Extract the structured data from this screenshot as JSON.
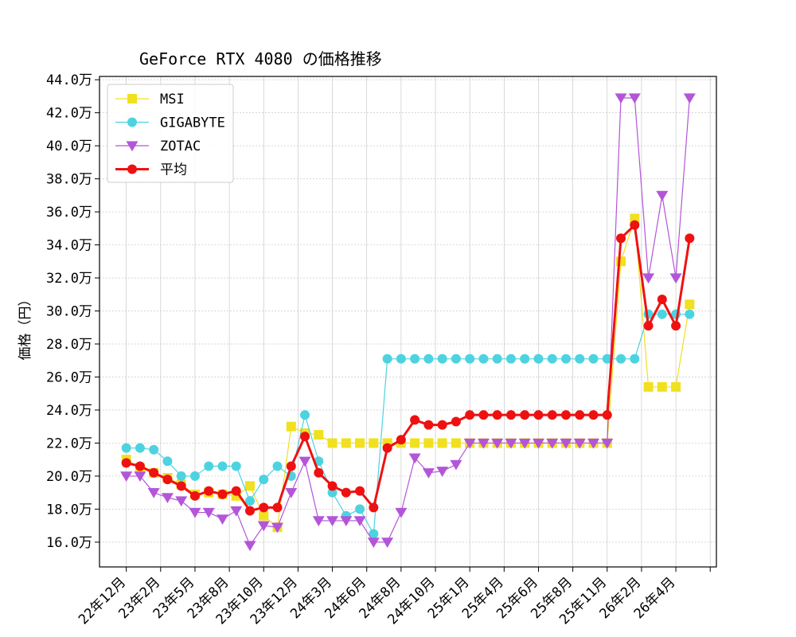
{
  "chart_data": {
    "type": "line",
    "title": "GeForce RTX 4080 の価格推移",
    "ylabel": "価格（円）",
    "xlabel": "",
    "ylim": [
      14.5,
      44.2
    ],
    "y_ticks": [
      16,
      18,
      20,
      22,
      24,
      26,
      28,
      30,
      32,
      34,
      36,
      38,
      40,
      42,
      44
    ],
    "y_tick_labels": [
      "16.0万",
      "18.0万",
      "20.0万",
      "22.0万",
      "24.0万",
      "26.0万",
      "28.0万",
      "30.0万",
      "32.0万",
      "34.0万",
      "36.0万",
      "38.0万",
      "40.0万",
      "42.0万",
      "44.0万"
    ],
    "x_ticks": [
      1,
      3.5,
      6,
      8.5,
      11,
      13.5,
      16,
      18.5,
      21,
      23.5,
      26,
      28.5,
      31,
      33.5,
      36,
      38.5,
      41,
      43.5
    ],
    "x_tick_labels": [
      "22年12月",
      "23年2月",
      "23年5月",
      "23年8月",
      "23年10月",
      "23年12月",
      "24年3月",
      "24年6月",
      "24年8月",
      "24年10月",
      "25年1月",
      "25年4月",
      "25年6月",
      "25年8月",
      "25年11月",
      "26年2月",
      "26年4月",
      ""
    ],
    "x": [
      1,
      2,
      3,
      4,
      5,
      6,
      7,
      8,
      9,
      10,
      11,
      12,
      13,
      14,
      15,
      16,
      17,
      18,
      19,
      20,
      21,
      22,
      23,
      24,
      25,
      26,
      27,
      28,
      29,
      30,
      31,
      32,
      33,
      34,
      35,
      36,
      37,
      38,
      39,
      40,
      41,
      42
    ],
    "grid": true,
    "legend_position": "top-left",
    "series": [
      {
        "name": "MSI",
        "color": "#f0e020",
        "marker": "square",
        "linewidth": 1.2,
        "values": [
          21.0,
          20.5,
          20.2,
          19.9,
          19.5,
          18.9,
          19.0,
          18.9,
          18.8,
          19.4,
          17.6,
          16.9,
          23.0,
          22.6,
          22.5,
          22.0,
          22.0,
          22.0,
          22.0,
          22.0,
          22.0,
          22.0,
          22.0,
          22.0,
          22.0,
          22.0,
          22.0,
          22.0,
          22.0,
          22.0,
          22.0,
          22.0,
          22.0,
          22.0,
          22.0,
          22.0,
          33.0,
          35.6,
          25.4,
          25.4,
          25.4,
          30.4
        ]
      },
      {
        "name": "GIGABYTE",
        "color": "#4dd3e0",
        "marker": "circle",
        "linewidth": 1.2,
        "values": [
          21.7,
          21.7,
          21.6,
          20.9,
          20.0,
          20.0,
          20.6,
          20.6,
          20.6,
          18.5,
          19.8,
          20.6,
          20.0,
          23.7,
          20.9,
          19.0,
          17.6,
          18.0,
          16.5,
          27.1,
          27.1,
          27.1,
          27.1,
          27.1,
          27.1,
          27.1,
          27.1,
          27.1,
          27.1,
          27.1,
          27.1,
          27.1,
          27.1,
          27.1,
          27.1,
          27.1,
          27.1,
          27.1,
          29.8,
          29.8,
          29.8,
          29.8
        ]
      },
      {
        "name": "ZOTAC",
        "color": "#b355d9",
        "marker": "triangle-down",
        "linewidth": 1.2,
        "values": [
          20.0,
          20.0,
          19.0,
          18.7,
          18.5,
          17.8,
          17.8,
          17.4,
          17.9,
          15.8,
          17.0,
          16.9,
          19.0,
          20.9,
          17.3,
          17.3,
          17.3,
          17.3,
          16.0,
          16.0,
          17.8,
          21.1,
          20.2,
          20.3,
          20.7,
          22.0,
          22.0,
          22.0,
          22.0,
          22.0,
          22.0,
          22.0,
          22.0,
          22.0,
          22.0,
          22.0,
          42.9,
          42.9,
          32.0,
          37.0,
          32.0,
          42.9
        ]
      },
      {
        "name": "平均",
        "color": "#ee1111",
        "marker": "circle",
        "linewidth": 3,
        "values": [
          20.8,
          20.6,
          20.2,
          19.8,
          19.4,
          18.8,
          19.1,
          18.9,
          19.1,
          17.9,
          18.1,
          18.1,
          20.6,
          22.4,
          20.2,
          19.4,
          19.0,
          19.1,
          18.1,
          21.7,
          22.2,
          23.4,
          23.1,
          23.1,
          23.3,
          23.7,
          23.7,
          23.7,
          23.7,
          23.7,
          23.7,
          23.7,
          23.7,
          23.7,
          23.7,
          23.7,
          34.4,
          35.2,
          29.1,
          30.7,
          29.1,
          34.4
        ]
      }
    ]
  }
}
